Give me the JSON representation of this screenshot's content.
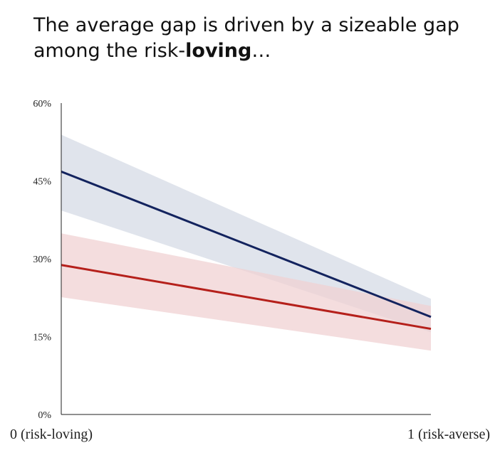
{
  "title": {
    "line1": "The average gap is driven by a sizeable gap",
    "line2_prefix": "among the risk-",
    "line2_bold": "loving",
    "line2_suffix": "…"
  },
  "chart_data": {
    "type": "line",
    "x": [
      0,
      1
    ],
    "x_tick_labels": [
      "0 (risk-loving)",
      "1 (risk-averse)"
    ],
    "ylim": [
      0,
      60
    ],
    "y_ticks": [
      0,
      15,
      30,
      45,
      60
    ],
    "y_tick_labels": [
      "0%",
      "15%",
      "30%",
      "45%",
      "60%"
    ],
    "grid": false,
    "series": [
      {
        "color": "#13235e",
        "band_color": "#d6dbe5",
        "values": [
          46.8,
          18.8
        ],
        "lower": [
          39.3,
          15.8
        ],
        "upper": [
          53.9,
          22.3
        ]
      },
      {
        "color": "#b5201b",
        "band_color": "#f0d2d3",
        "values": [
          28.8,
          16.5
        ],
        "lower": [
          22.6,
          12.3
        ],
        "upper": [
          34.9,
          20.9
        ]
      }
    ]
  }
}
